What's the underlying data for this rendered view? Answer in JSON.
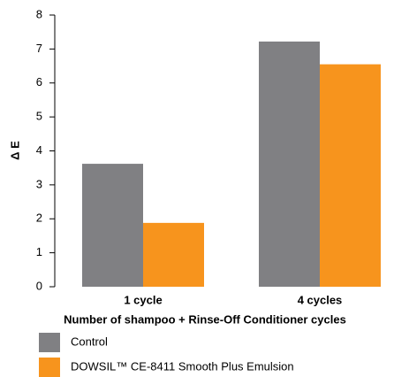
{
  "chart_data": {
    "type": "bar",
    "categories": [
      "1 cycle",
      "4 cycles"
    ],
    "series": [
      {
        "name": "Control",
        "color": "#808083",
        "values": [
          3.62,
          7.22
        ]
      },
      {
        "name": "DOWSIL™ CE-8411 Smooth Plus Emulsion",
        "color": "#f7941d",
        "values": [
          1.88,
          6.55
        ]
      }
    ],
    "y_label": "Δ E",
    "x_label": "Number of shampoo + Rinse-Off Conditioner cycles",
    "ylim": [
      0,
      8
    ],
    "yticks": [
      0,
      1,
      2,
      3,
      4,
      5,
      6,
      7,
      8
    ],
    "legend": "bottom-left"
  }
}
